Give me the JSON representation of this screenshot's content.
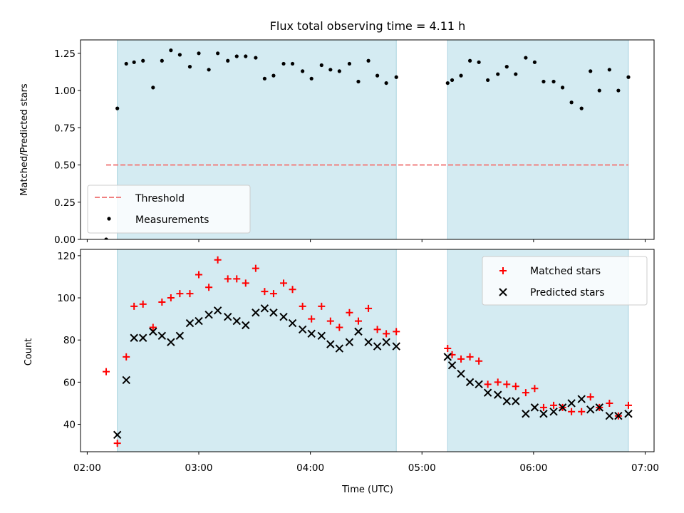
{
  "chart_data": {
    "title": "Flux total observing time = 4.11 h",
    "xlabel": "Time (UTC)",
    "x_ticks": [
      "02:00",
      "03:00",
      "04:00",
      "05:00",
      "06:00",
      "07:00"
    ],
    "x_tick_values": [
      2.0,
      3.0,
      4.0,
      5.0,
      6.0,
      7.0
    ],
    "xlim": [
      1.94,
      7.08
    ],
    "shaded_intervals": [
      [
        2.27,
        4.77
      ],
      [
        5.23,
        6.85
      ]
    ],
    "shade_color": "#add8e6",
    "panels": [
      {
        "type": "scatter",
        "ylabel": "Matched/Predicted stars",
        "ylim": [
          0,
          1.34
        ],
        "y_ticks": [
          "0.00",
          "0.25",
          "0.50",
          "0.75",
          "1.00",
          "1.25"
        ],
        "y_tick_values": [
          0,
          0.25,
          0.5,
          0.75,
          1.0,
          1.25
        ],
        "threshold": {
          "name": "Threshold",
          "y": 0.5,
          "x_range": [
            2.17,
            6.85
          ],
          "color": "#f08080"
        },
        "legend": {
          "position": "lower-left",
          "entries": [
            "Threshold",
            "Measurements"
          ]
        },
        "series": [
          {
            "name": "Measurements",
            "color": "#000000",
            "marker": "dot",
            "x": [
              2.17,
              2.27,
              2.35,
              2.42,
              2.5,
              2.59,
              2.67,
              2.75,
              2.83,
              2.92,
              3.0,
              3.09,
              3.17,
              3.26,
              3.34,
              3.42,
              3.51,
              3.59,
              3.67,
              3.76,
              3.84,
              3.93,
              4.01,
              4.1,
              4.18,
              4.26,
              4.35,
              4.43,
              4.52,
              4.6,
              4.68,
              4.77,
              5.23,
              5.27,
              5.35,
              5.43,
              5.51,
              5.59,
              5.68,
              5.76,
              5.84,
              5.93,
              6.01,
              6.09,
              6.18,
              6.26,
              6.34,
              6.43,
              6.51,
              6.59,
              6.68,
              6.76,
              6.85
            ],
            "y": [
              0.0,
              0.88,
              1.18,
              1.19,
              1.2,
              1.02,
              1.2,
              1.27,
              1.24,
              1.16,
              1.25,
              1.14,
              1.25,
              1.2,
              1.23,
              1.23,
              1.22,
              1.08,
              1.1,
              1.18,
              1.18,
              1.13,
              1.08,
              1.17,
              1.14,
              1.13,
              1.18,
              1.06,
              1.2,
              1.1,
              1.05,
              1.09,
              1.05,
              1.07,
              1.1,
              1.2,
              1.19,
              1.07,
              1.11,
              1.16,
              1.11,
              1.22,
              1.19,
              1.06,
              1.06,
              1.02,
              0.92,
              0.88,
              1.13,
              1.0,
              1.14,
              1.0,
              1.09
            ]
          }
        ]
      },
      {
        "type": "scatter",
        "ylabel": "Count",
        "ylim": [
          27,
          123
        ],
        "y_ticks": [
          "40",
          "60",
          "80",
          "100",
          "120"
        ],
        "y_tick_values": [
          40,
          60,
          80,
          100,
          120
        ],
        "legend": {
          "position": "upper-right",
          "entries": [
            "Matched stars",
            "Predicted stars"
          ]
        },
        "series": [
          {
            "name": "Matched stars",
            "color": "#ff0000",
            "marker": "plus",
            "x": [
              2.17,
              2.27,
              2.35,
              2.42,
              2.5,
              2.59,
              2.67,
              2.75,
              2.83,
              2.92,
              3.0,
              3.09,
              3.17,
              3.26,
              3.34,
              3.42,
              3.51,
              3.59,
              3.67,
              3.76,
              3.84,
              3.93,
              4.01,
              4.1,
              4.18,
              4.26,
              4.35,
              4.43,
              4.52,
              4.6,
              4.68,
              4.77,
              5.23,
              5.27,
              5.35,
              5.43,
              5.51,
              5.59,
              5.68,
              5.76,
              5.84,
              5.93,
              6.01,
              6.09,
              6.18,
              6.26,
              6.34,
              6.43,
              6.51,
              6.59,
              6.68,
              6.76,
              6.85
            ],
            "y": [
              65,
              31,
              72,
              96,
              97,
              86,
              98,
              100,
              102,
              102,
              111,
              105,
              118,
              109,
              109,
              107,
              114,
              103,
              102,
              107,
              104,
              96,
              90,
              96,
              89,
              86,
              93,
              89,
              95,
              85,
              83,
              84,
              76,
              73,
              71,
              72,
              70,
              59,
              60,
              59,
              58,
              55,
              57,
              48,
              49,
              48,
              46,
              46,
              53,
              48,
              50,
              44,
              49
            ]
          },
          {
            "name": "Predicted stars",
            "color": "#000000",
            "marker": "x",
            "x": [
              2.27,
              2.35,
              2.42,
              2.5,
              2.59,
              2.67,
              2.75,
              2.83,
              2.92,
              3.0,
              3.09,
              3.17,
              3.26,
              3.34,
              3.42,
              3.51,
              3.59,
              3.67,
              3.76,
              3.84,
              3.93,
              4.01,
              4.1,
              4.18,
              4.26,
              4.35,
              4.43,
              4.52,
              4.6,
              4.68,
              4.77,
              5.23,
              5.27,
              5.35,
              5.43,
              5.51,
              5.59,
              5.68,
              5.76,
              5.84,
              5.93,
              6.01,
              6.09,
              6.18,
              6.26,
              6.34,
              6.43,
              6.51,
              6.59,
              6.68,
              6.76,
              6.85
            ],
            "y": [
              35,
              61,
              81,
              81,
              84,
              82,
              79,
              82,
              88,
              89,
              92,
              94,
              91,
              89,
              87,
              93,
              95,
              93,
              91,
              88,
              85,
              83,
              82,
              78,
              76,
              79,
              84,
              79,
              77,
              79,
              77,
              72,
              68,
              64,
              60,
              59,
              55,
              54,
              51,
              51,
              45,
              48,
              45,
              46,
              48,
              50,
              52,
              47,
              48,
              44,
              44,
              45
            ]
          }
        ]
      }
    ]
  }
}
